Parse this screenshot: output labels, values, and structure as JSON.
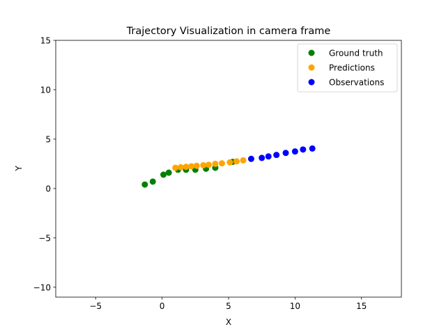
{
  "chart_data": {
    "type": "scatter",
    "title": "Trajectory Visualization in camera frame",
    "xlabel": "X",
    "ylabel": "Y",
    "xlim": [
      -8,
      18
    ],
    "ylim": [
      -11,
      15
    ],
    "xticks": [
      -5,
      0,
      5,
      10,
      15
    ],
    "yticks": [
      -10,
      -5,
      0,
      5,
      10,
      15
    ],
    "xtick_labels": [
      "−5",
      "0",
      "5",
      "10",
      "15"
    ],
    "ytick_labels": [
      "−10",
      "−5",
      "0",
      "5",
      "10",
      "15"
    ],
    "grid": false,
    "legend_position": "top-right",
    "series": [
      {
        "name": "Ground truth",
        "color": "#008000",
        "points": [
          [
            -1.3,
            0.4
          ],
          [
            -0.7,
            0.7
          ],
          [
            0.1,
            1.4
          ],
          [
            0.5,
            1.6
          ],
          [
            1.2,
            1.9
          ],
          [
            1.8,
            1.9
          ],
          [
            2.5,
            1.9
          ],
          [
            3.3,
            2.0
          ],
          [
            4.0,
            2.1
          ],
          [
            5.3,
            2.7
          ]
        ]
      },
      {
        "name": "Predictions",
        "color": "#ffa500",
        "points": [
          [
            1.0,
            2.1
          ],
          [
            1.4,
            2.15
          ],
          [
            1.8,
            2.2
          ],
          [
            2.2,
            2.25
          ],
          [
            2.6,
            2.3
          ],
          [
            3.1,
            2.35
          ],
          [
            3.5,
            2.4
          ],
          [
            4.0,
            2.5
          ],
          [
            4.5,
            2.55
          ],
          [
            5.1,
            2.65
          ],
          [
            5.6,
            2.75
          ],
          [
            6.1,
            2.85
          ]
        ]
      },
      {
        "name": "Observations",
        "color": "#0000ff",
        "points": [
          [
            6.7,
            3.0
          ],
          [
            7.5,
            3.1
          ],
          [
            8.0,
            3.25
          ],
          [
            8.6,
            3.4
          ],
          [
            9.3,
            3.6
          ],
          [
            10.0,
            3.75
          ],
          [
            10.6,
            3.95
          ],
          [
            11.3,
            4.05
          ]
        ]
      }
    ]
  }
}
